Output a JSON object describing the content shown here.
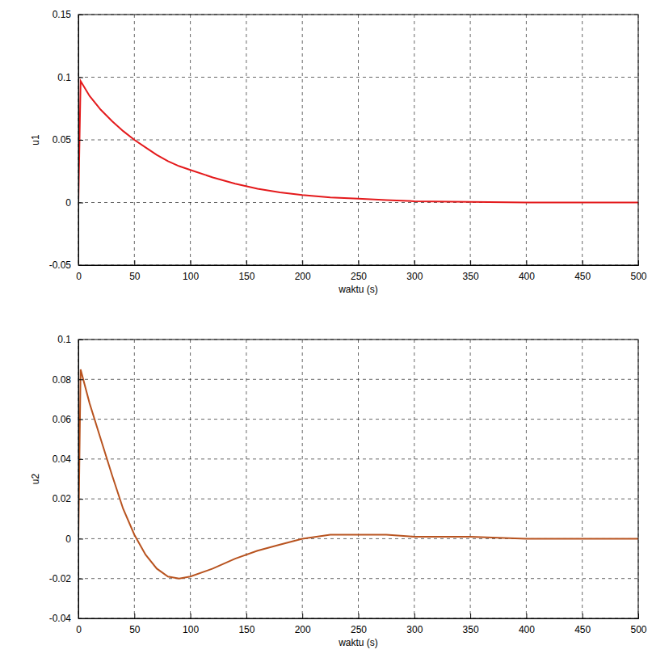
{
  "chart_data": [
    {
      "type": "line",
      "x_label": "waktu (s)",
      "y_label": "u1",
      "color": "#e41a1c",
      "grid": true,
      "x": [
        0,
        2,
        10,
        20,
        30,
        40,
        50,
        60,
        70,
        80,
        90,
        100,
        120,
        140,
        160,
        180,
        200,
        225,
        250,
        275,
        300,
        350,
        400,
        450,
        500
      ],
      "values": [
        0,
        0.097,
        0.085,
        0.074,
        0.065,
        0.057,
        0.05,
        0.044,
        0.038,
        0.033,
        0.029,
        0.026,
        0.02,
        0.015,
        0.011,
        0.008,
        0.006,
        0.004,
        0.003,
        0.002,
        0.001,
        0.0005,
        0,
        0,
        0
      ],
      "xlim": [
        0,
        500
      ],
      "xticks": [
        0,
        50,
        100,
        150,
        200,
        250,
        300,
        350,
        400,
        450,
        500
      ],
      "ylim": [
        -0.05,
        0.15
      ],
      "yticks": [
        -0.05,
        0,
        0.05,
        0.1,
        0.15
      ]
    },
    {
      "type": "line",
      "x_label": "waktu (s)",
      "y_label": "u2",
      "color": "#b8531f",
      "grid": true,
      "x": [
        0,
        2,
        10,
        20,
        30,
        40,
        50,
        60,
        70,
        80,
        90,
        100,
        120,
        140,
        160,
        180,
        200,
        225,
        250,
        275,
        300,
        350,
        400,
        450,
        500
      ],
      "values": [
        0,
        0.085,
        0.068,
        0.05,
        0.032,
        0.015,
        0.002,
        -0.008,
        -0.015,
        -0.019,
        -0.02,
        -0.019,
        -0.015,
        -0.01,
        -0.006,
        -0.003,
        0,
        0.002,
        0.002,
        0.002,
        0.001,
        0.001,
        0,
        0,
        0
      ],
      "xlim": [
        0,
        500
      ],
      "xticks": [
        0,
        50,
        100,
        150,
        200,
        250,
        300,
        350,
        400,
        450,
        500
      ],
      "ylim": [
        -0.04,
        0.1
      ],
      "yticks": [
        -0.04,
        -0.02,
        0,
        0.02,
        0.04,
        0.06,
        0.08,
        0.1
      ]
    }
  ]
}
